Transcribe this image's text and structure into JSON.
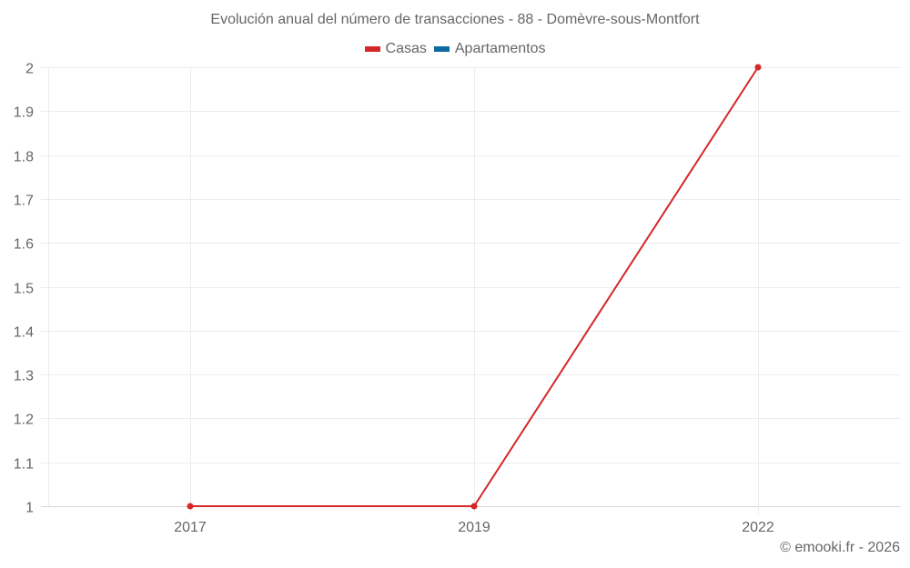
{
  "chart_data": {
    "type": "line",
    "title": "Evolución anual del número de transacciones - 88 - Domèvre-sous-Montfort",
    "xlabel": "",
    "ylabel": "",
    "categories": [
      "2017",
      "2019",
      "2022"
    ],
    "x": [
      2017,
      2019,
      2022
    ],
    "series": [
      {
        "name": "Casas",
        "color": "#d62728",
        "values": [
          1,
          1,
          2
        ]
      },
      {
        "name": "Apartamentos",
        "color": "#0b6aa2",
        "values": []
      }
    ],
    "ylim": [
      1,
      2
    ],
    "yticks": [
      "1",
      "1.1",
      "1.2",
      "1.3",
      "1.4",
      "1.5",
      "1.6",
      "1.7",
      "1.8",
      "1.9",
      "2"
    ],
    "grid": true,
    "legend_position": "top"
  },
  "header": {
    "title": "Evolución anual del número de transacciones - 88 - Domèvre-sous-Montfort"
  },
  "legend": {
    "items": [
      {
        "label": "Casas",
        "color": "#d62728"
      },
      {
        "label": "Apartamentos",
        "color": "#0b6aa2"
      }
    ]
  },
  "footer": {
    "credit": "© emooki.fr - 2026"
  }
}
